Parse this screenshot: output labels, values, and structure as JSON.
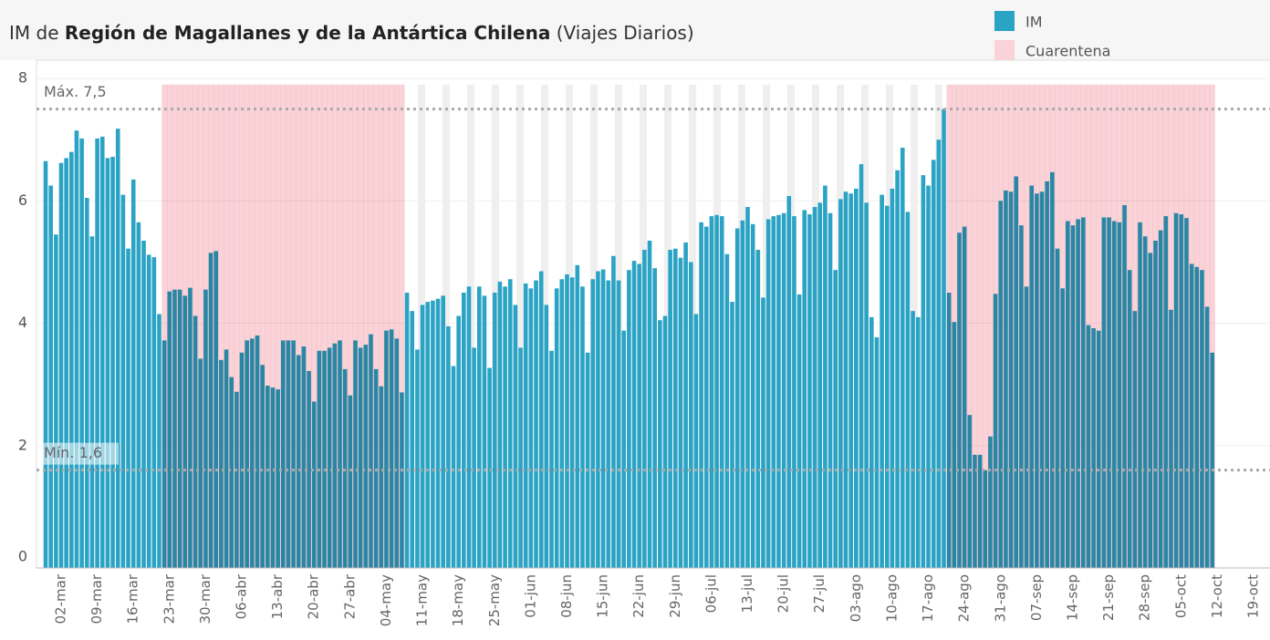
{
  "chart_data": {
    "type": "bar",
    "title_parts": [
      "IM de",
      "Región de Magallanes y de la Antártica Chilena",
      "(Viajes Diarios)"
    ],
    "categories": [
      null,
      null,
      null,
      "02-mar",
      null,
      null,
      null,
      null,
      null,
      null,
      "09-mar",
      null,
      null,
      null,
      null,
      null,
      null,
      "16-mar",
      null,
      null,
      null,
      null,
      null,
      null,
      "23-mar",
      null,
      null,
      null,
      null,
      null,
      null,
      "30-mar",
      null,
      null,
      null,
      null,
      null,
      null,
      "06-abr",
      null,
      null,
      null,
      null,
      null,
      null,
      "13-abr",
      null,
      null,
      null,
      null,
      null,
      null,
      "20-abr",
      null,
      null,
      null,
      null,
      null,
      null,
      "27-abr",
      null,
      null,
      null,
      null,
      null,
      null,
      "04-may",
      null,
      null,
      null,
      null,
      null,
      null,
      "11-may",
      null,
      null,
      null,
      null,
      null,
      null,
      "18-may",
      null,
      null,
      null,
      null,
      null,
      null,
      "25-may",
      null,
      null,
      null,
      null,
      null,
      null,
      "01-jun",
      null,
      null,
      null,
      null,
      null,
      null,
      "08-jun",
      null,
      null,
      null,
      null,
      null,
      null,
      "15-jun",
      null,
      null,
      null,
      null,
      null,
      null,
      "22-jun",
      null,
      null,
      null,
      null,
      null,
      null,
      "29-jun",
      null,
      null,
      null,
      null,
      null,
      null,
      "06-jul",
      null,
      null,
      null,
      null,
      null,
      null,
      "13-jul",
      null,
      null,
      null,
      null,
      null,
      null,
      "20-jul",
      null,
      null,
      null,
      null,
      null,
      null,
      "27-jul",
      null,
      null,
      null,
      null,
      null,
      null,
      "03-ago",
      null,
      null,
      null,
      null,
      null,
      null,
      "10-ago",
      null,
      null,
      null,
      null,
      null,
      null,
      "17-ago",
      null,
      null,
      null,
      null,
      null,
      null,
      "24-ago",
      null,
      null,
      null,
      null,
      null,
      null,
      "31-ago",
      null,
      null,
      null,
      null,
      null,
      null,
      "07-sep",
      null,
      null,
      null,
      null,
      null,
      null,
      "14-sep",
      null,
      null,
      null,
      null,
      null,
      null,
      "21-sep",
      null,
      null,
      null,
      null,
      null,
      null,
      "28-sep",
      null,
      null,
      null,
      null,
      null,
      null,
      "05-oct",
      null,
      null,
      null,
      null,
      null,
      null,
      "12-oct",
      null,
      null,
      null,
      null,
      null,
      null,
      "19-oct"
    ],
    "series": [
      {
        "name": "IM",
        "color": "#2aa3c4",
        "values": [
          6.65,
          6.25,
          5.45,
          6.62,
          6.7,
          6.8,
          7.15,
          7.02,
          6.05,
          5.42,
          7.02,
          7.05,
          6.7,
          6.72,
          7.18,
          6.1,
          5.22,
          6.35,
          5.65,
          5.35,
          5.12,
          5.08,
          4.15,
          3.72,
          4.52,
          4.55,
          4.55,
          4.45,
          4.58,
          4.12,
          3.42,
          4.55,
          5.15,
          5.18,
          3.4,
          3.57,
          3.12,
          2.88,
          3.52,
          3.72,
          3.75,
          3.8,
          3.32,
          2.98,
          2.95,
          2.92,
          3.72,
          3.72,
          3.72,
          3.48,
          3.62,
          3.22,
          2.72,
          3.55,
          3.55,
          3.6,
          3.67,
          3.72,
          3.25,
          2.82,
          3.72,
          3.6,
          3.65,
          3.82,
          3.25,
          2.97,
          3.88,
          3.9,
          3.75,
          2.87,
          4.5,
          4.2,
          3.57,
          4.3,
          4.35,
          4.37,
          4.4,
          4.45,
          3.95,
          3.3,
          4.12,
          4.5,
          4.6,
          3.6,
          4.6,
          4.45,
          3.27,
          4.5,
          4.68,
          4.6,
          4.72,
          4.3,
          3.6,
          4.65,
          4.57,
          4.7,
          4.85,
          4.3,
          3.55,
          4.57,
          4.72,
          4.8,
          4.75,
          4.95,
          4.6,
          3.52,
          4.72,
          4.85,
          4.88,
          4.7,
          5.1,
          4.7,
          3.88,
          4.87,
          5.02,
          4.97,
          5.2,
          5.35,
          4.9,
          4.05,
          4.12,
          5.2,
          5.22,
          5.07,
          5.32,
          5.0,
          4.15,
          5.65,
          5.58,
          5.75,
          5.77,
          5.75,
          5.13,
          4.35,
          5.55,
          5.68,
          5.9,
          5.62,
          5.2,
          4.42,
          5.7,
          5.75,
          5.77,
          5.8,
          6.08,
          5.75,
          4.47,
          5.85,
          5.78,
          5.9,
          5.97,
          6.25,
          5.8,
          4.87,
          6.03,
          6.15,
          6.12,
          6.2,
          6.6,
          5.97,
          4.1,
          3.77,
          6.1,
          5.92,
          6.2,
          6.5,
          6.87,
          5.82,
          4.2,
          4.1,
          6.42,
          6.25,
          6.67,
          7.0,
          7.5,
          4.5,
          4.02,
          5.48,
          5.58,
          2.5,
          1.85,
          1.85,
          1.6,
          2.15,
          4.48,
          6.0,
          6.17,
          6.15,
          6.4,
          5.6,
          4.6,
          6.25,
          6.12,
          6.15,
          6.32,
          6.47,
          5.22,
          4.57,
          5.67,
          5.6,
          5.7,
          5.73,
          3.97,
          3.92,
          3.88,
          5.73,
          5.73,
          5.67,
          5.65,
          5.93,
          4.87,
          4.2,
          5.65,
          5.42,
          5.15,
          5.35,
          5.52,
          5.75,
          4.22,
          5.8,
          5.78,
          5.72,
          4.97,
          4.92,
          4.87,
          4.27,
          3.52,
          null,
          null,
          null,
          null,
          null,
          null,
          null,
          null
        ]
      },
      {
        "name": "Cuarentena",
        "color": "#f9d3d8",
        "values": [
          null,
          null,
          null,
          null,
          null,
          null,
          null,
          null,
          null,
          null,
          null,
          null,
          null,
          null,
          null,
          null,
          null,
          null,
          null,
          null,
          null,
          null,
          null,
          7.9,
          7.9,
          7.9,
          7.9,
          7.9,
          7.9,
          7.9,
          7.9,
          7.9,
          7.9,
          7.9,
          7.9,
          7.9,
          7.9,
          7.9,
          7.9,
          7.9,
          7.9,
          7.9,
          7.9,
          7.9,
          7.9,
          7.9,
          7.9,
          7.9,
          7.9,
          7.9,
          7.9,
          7.9,
          7.9,
          7.9,
          7.9,
          7.9,
          7.9,
          7.9,
          7.9,
          7.9,
          7.9,
          7.9,
          7.9,
          7.9,
          7.9,
          7.9,
          7.9,
          7.9,
          7.9,
          7.9,
          null,
          null,
          null,
          null,
          null,
          null,
          null,
          null,
          null,
          null,
          null,
          null,
          null,
          null,
          null,
          null,
          null,
          null,
          null,
          null,
          null,
          null,
          null,
          null,
          null,
          null,
          null,
          null,
          null,
          null,
          null,
          null,
          null,
          null,
          null,
          null,
          null,
          null,
          null,
          null,
          null,
          null,
          null,
          null,
          null,
          null,
          null,
          null,
          null,
          null,
          null,
          null,
          null,
          null,
          null,
          null,
          null,
          null,
          null,
          null,
          null,
          null,
          null,
          null,
          null,
          null,
          null,
          null,
          null,
          null,
          null,
          null,
          null,
          null,
          null,
          null,
          null,
          null,
          null,
          null,
          null,
          null,
          null,
          null,
          null,
          null,
          null,
          null,
          null,
          null,
          null,
          null,
          null,
          null,
          null,
          null,
          null,
          null,
          null,
          null,
          null,
          null,
          null,
          null,
          null,
          7.9,
          7.9,
          7.9,
          7.9,
          7.9,
          7.9,
          7.9,
          7.9,
          7.9,
          7.9,
          7.9,
          7.9,
          7.9,
          7.9,
          7.9,
          7.9,
          7.9,
          7.9,
          7.9,
          7.9,
          7.9,
          7.9,
          7.9,
          7.9,
          7.9,
          7.9,
          7.9,
          7.9,
          7.9,
          7.9,
          7.9,
          7.9,
          7.9,
          7.9,
          7.9,
          7.9,
          7.9,
          7.9,
          7.9,
          7.9,
          7.9,
          7.9,
          7.9,
          7.9,
          7.9,
          7.9,
          7.9,
          7.9,
          7.9,
          7.9,
          7.9,
          7.9,
          null,
          null,
          null,
          null,
          null,
          null,
          null,
          null
        ]
      }
    ],
    "reference_lines": [
      {
        "label": "Máx. 7,5",
        "value": 7.5
      },
      {
        "label": "Mín. 1,6",
        "value": 1.6
      }
    ],
    "ylim": [
      0,
      8.3
    ],
    "yticks": [
      0,
      2,
      4,
      6,
      8
    ],
    "grid": true
  }
}
